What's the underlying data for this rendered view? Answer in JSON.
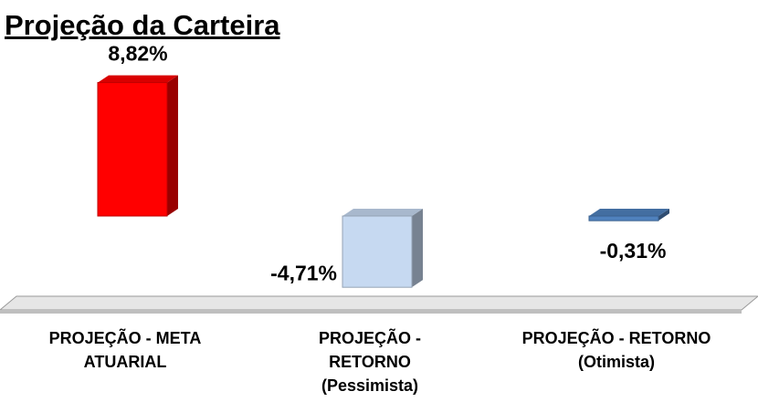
{
  "chart_data": {
    "type": "bar3d",
    "title": "Projeção da Carteira",
    "categories": [
      "PROJEÇÃO - META ATUARIAL",
      "PROJEÇÃO - RETORNO (Pessimista)",
      "PROJEÇÃO - RETORNO (Otimista)"
    ],
    "values": [
      8.82,
      -4.71,
      -0.31
    ],
    "value_labels": [
      "8,82%",
      "-4,71%",
      "-0,31%"
    ],
    "colors": [
      "#ff0000",
      "#c6d9f1",
      "#4f81bd"
    ]
  }
}
